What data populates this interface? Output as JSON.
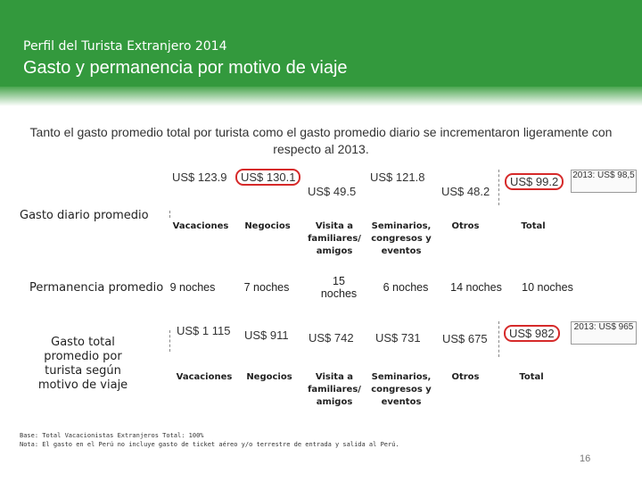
{
  "header": {
    "subtitle": "Perfil del Turista Extranjero 2014",
    "title": "Gasto y permanencia por motivo de viaje"
  },
  "intro": "Tanto el gasto promedio total por turista como el gasto promedio diario se incrementaron ligeramente con respecto al 2013.",
  "daily": {
    "row_label": "Gasto  diario promedio",
    "values": [
      "US$ 123.9",
      "US$ 130.1",
      "US$ 49.5",
      "US$ 121.8",
      "US$ 48.2",
      "US$ 99.2"
    ],
    "compare": "2013: US$ 98,5"
  },
  "categories": [
    "Vacaciones",
    "Negocios",
    "Visita a familiares/ amigos",
    "Seminarios, congresos y eventos",
    "Otros",
    "Total"
  ],
  "stay": {
    "row_label": "Permanencia promedio",
    "values": [
      "9 noches",
      "7 noches",
      "15 noches",
      "6 noches",
      "14 noches",
      "10 noches"
    ]
  },
  "total": {
    "row_label": "Gasto total promedio por turista según motivo de viaje",
    "values": [
      "US$ 1 115",
      "US$  911",
      "US$  742",
      "US$  731",
      "US$  675",
      "US$  982"
    ],
    "compare": "2013: US$ 965"
  },
  "notes": {
    "base": "Base: Total Vacacionistas Extranjeros     Total: 100%",
    "nota": "Nota: El gasto en el Perú no incluye gasto de ticket aéreo y/o terrestre de entrada y salida al Perú."
  },
  "page_number": "16",
  "colors": {
    "header": "#33993d",
    "highlight": "#d62a2a"
  }
}
